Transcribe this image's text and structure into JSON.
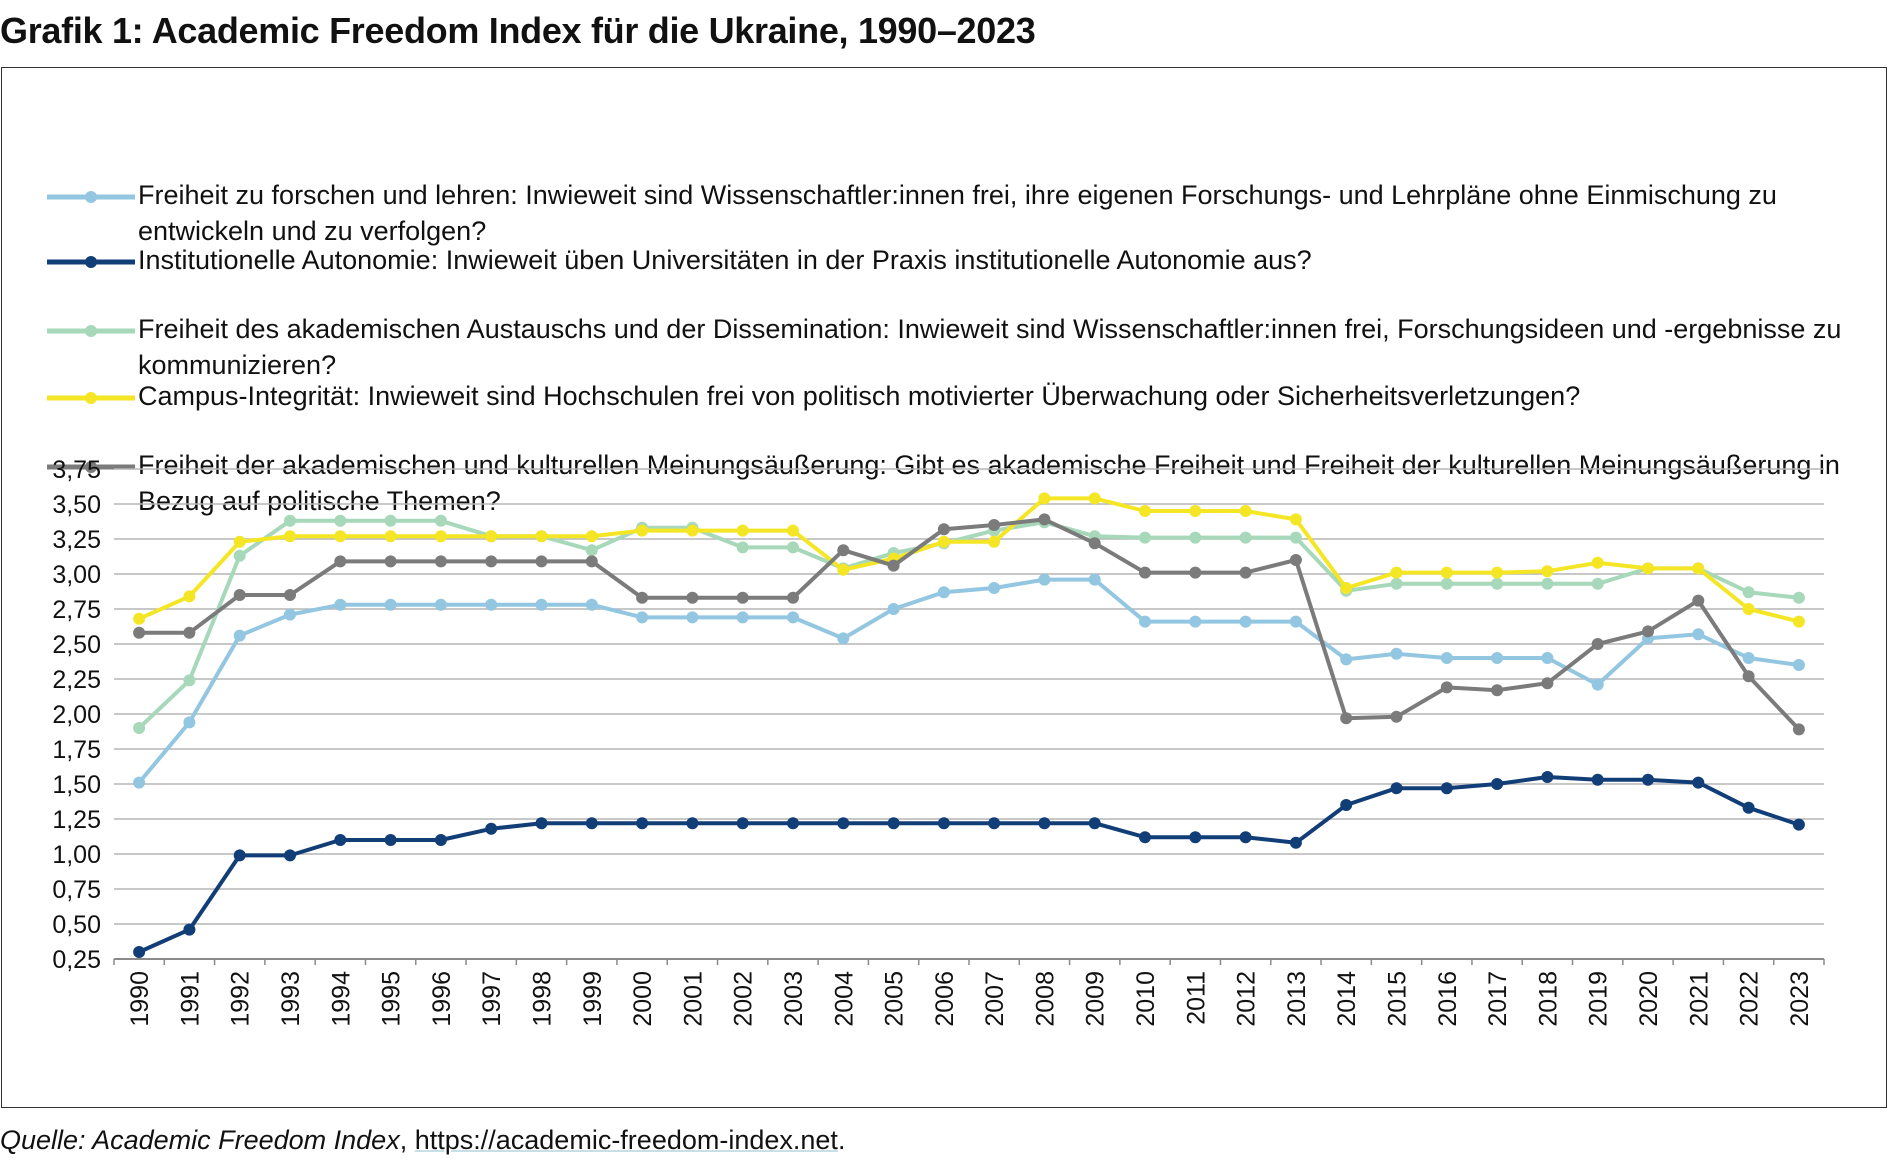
{
  "title": "Grafik 1: Academic Freedom Index für die Ukraine, 1990–2023",
  "source": {
    "prefix": "Quelle: ",
    "name": "Academic Freedom Index",
    "sep": ", ",
    "url": "https://academic-freedom-index.net",
    "suffix": "."
  },
  "chart_data": {
    "type": "line",
    "title": "",
    "xlabel": "",
    "ylabel": "",
    "ylim": [
      0.25,
      3.75
    ],
    "yticks": [
      "0,25",
      "0,50",
      "0,75",
      "1,00",
      "1,25",
      "1,50",
      "1,75",
      "2,00",
      "2,25",
      "2,50",
      "2,75",
      "3,00",
      "3,25",
      "3,50",
      "3,75"
    ],
    "grid": "horizontal",
    "legend_position": "top",
    "x": [
      "1990",
      "1991",
      "1992",
      "1993",
      "1994",
      "1995",
      "1996",
      "1997",
      "1998",
      "1999",
      "2000",
      "2001",
      "2002",
      "2003",
      "2004",
      "2005",
      "2006",
      "2007",
      "2008",
      "2009",
      "2010",
      "2011",
      "2012",
      "2013",
      "2014",
      "2015",
      "2016",
      "2017",
      "2018",
      "2019",
      "2020",
      "2021",
      "2022",
      "2023"
    ],
    "series": [
      {
        "name": "Freiheit zu forschen und lehren: Inwieweit sind Wissenschaftler:innen frei, ihre eigenen Forschungs- und Lehrpläne ohne Einmischung zu entwickeln und zu verfolgen?",
        "color": "#93c6e0",
        "values": [
          1.51,
          1.94,
          2.56,
          2.71,
          2.78,
          2.78,
          2.78,
          2.78,
          2.78,
          2.78,
          2.69,
          2.69,
          2.69,
          2.69,
          2.54,
          2.75,
          2.87,
          2.9,
          2.96,
          2.96,
          2.66,
          2.66,
          2.66,
          2.66,
          2.39,
          2.43,
          2.4,
          2.4,
          2.4,
          2.21,
          2.54,
          2.57,
          2.4,
          2.35
        ]
      },
      {
        "name": "Institutionelle Autonomie: Inwieweit üben Universitäten in der Praxis institutionelle Autonomie aus?",
        "color": "#123e78",
        "values": [
          0.3,
          0.46,
          0.99,
          0.99,
          1.1,
          1.1,
          1.1,
          1.18,
          1.22,
          1.22,
          1.22,
          1.22,
          1.22,
          1.22,
          1.22,
          1.22,
          1.22,
          1.22,
          1.22,
          1.22,
          1.12,
          1.12,
          1.12,
          1.08,
          1.35,
          1.47,
          1.47,
          1.5,
          1.55,
          1.53,
          1.53,
          1.51,
          1.33,
          1.21
        ]
      },
      {
        "name": "Freiheit des akademischen Austauschs und der Dissemination: Inwieweit sind Wissenschaftler:innen frei, Forschungsideen und -ergebnisse zu kommunizieren?",
        "color": "#a6d8b9",
        "values": [
          1.9,
          2.24,
          3.13,
          3.38,
          3.38,
          3.38,
          3.38,
          3.27,
          3.27,
          3.17,
          3.33,
          3.33,
          3.19,
          3.19,
          3.04,
          3.15,
          3.22,
          3.31,
          3.37,
          3.27,
          3.26,
          3.26,
          3.26,
          3.26,
          2.88,
          2.93,
          2.93,
          2.93,
          2.93,
          2.93,
          3.04,
          3.04,
          2.87,
          2.83
        ]
      },
      {
        "name": "Campus-Integrität: Inwieweit sind Hochschulen frei von politisch motivierter Überwachung oder Sicherheitsverletzungen?",
        "color": "#f5e625",
        "values": [
          2.68,
          2.84,
          3.23,
          3.27,
          3.27,
          3.27,
          3.27,
          3.27,
          3.27,
          3.27,
          3.31,
          3.31,
          3.31,
          3.31,
          3.03,
          3.11,
          3.23,
          3.23,
          3.54,
          3.54,
          3.45,
          3.45,
          3.45,
          3.39,
          2.9,
          3.01,
          3.01,
          3.01,
          3.02,
          3.08,
          3.04,
          3.04,
          2.75,
          2.66
        ]
      },
      {
        "name": "Freiheit der akademischen und kulturellen Meinungsäußerung: Gibt es akademische Freiheit und Freiheit der kulturellen Meinungsäußerung in Bezug auf politische Themen?",
        "color": "#7b7b7b",
        "values": [
          2.58,
          2.58,
          2.85,
          2.85,
          3.09,
          3.09,
          3.09,
          3.09,
          3.09,
          3.09,
          2.83,
          2.83,
          2.83,
          2.83,
          3.17,
          3.06,
          3.32,
          3.35,
          3.39,
          3.22,
          3.01,
          3.01,
          3.01,
          3.1,
          1.97,
          1.98,
          2.19,
          2.17,
          2.22,
          2.5,
          2.59,
          2.81,
          2.27,
          1.89
        ]
      }
    ]
  }
}
